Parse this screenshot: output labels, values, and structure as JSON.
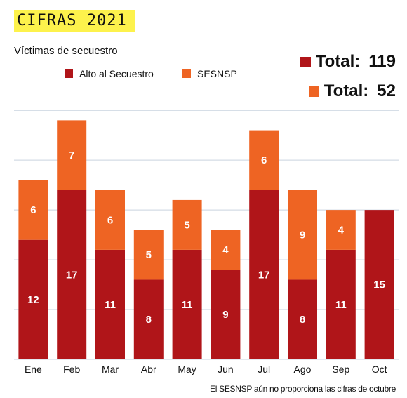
{
  "header": {
    "badge": "CIFRAS 2021"
  },
  "chart_data": {
    "type": "bar",
    "stacked": true,
    "title": "Víctimas de secuestro",
    "categories": [
      "Ene",
      "Feb",
      "Mar",
      "Abr",
      "May",
      "Jun",
      "Jul",
      "Ago",
      "Sep",
      "Oct"
    ],
    "series": [
      {
        "name": "Alto al Secuestro",
        "color": "#b01519",
        "values": [
          12,
          17,
          11,
          8,
          11,
          9,
          17,
          8,
          11,
          15
        ]
      },
      {
        "name": "SESNSP",
        "color": "#ee6423",
        "values": [
          6,
          7,
          6,
          5,
          5,
          4,
          6,
          9,
          4,
          null
        ]
      }
    ],
    "totals": [
      {
        "label": "Total:",
        "value": "119",
        "color": "#b01519"
      },
      {
        "label": "Total:",
        "value": "52",
        "color": "#ee6423"
      }
    ],
    "ylim": [
      0,
      26
    ],
    "grid": true,
    "note": "El SESNSP aún no proporciona las cifras de octubre"
  }
}
